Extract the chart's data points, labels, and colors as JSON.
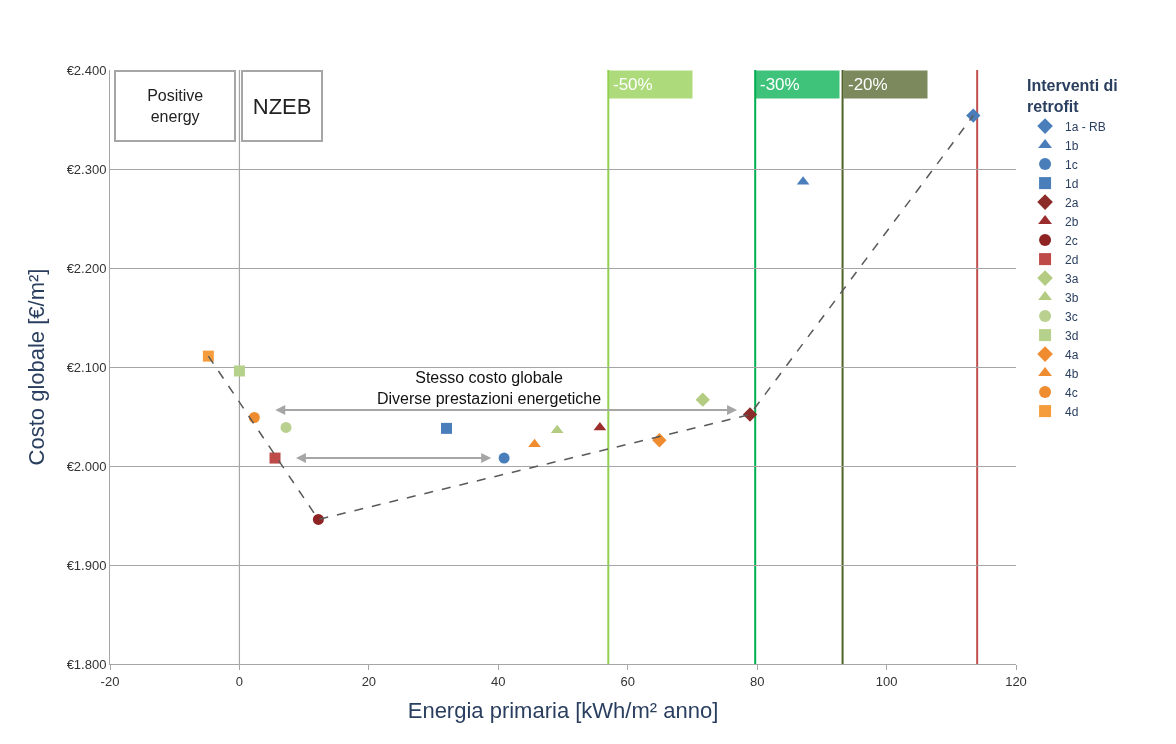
{
  "chart_data": {
    "type": "scatter",
    "xlabel": "Energia primaria [kWh/m² anno]",
    "ylabel": "Costo globale [€/m²]",
    "legend_title": "Interventi di retrofit",
    "legend": "right",
    "grid": "y",
    "xlim": [
      -20,
      120
    ],
    "xticks": [
      -20,
      0,
      20,
      40,
      60,
      80,
      100,
      120
    ],
    "ylim": [
      1800,
      2400
    ],
    "yticks": [
      {
        "value": 1800,
        "label": "€1.800"
      },
      {
        "value": 1900,
        "label": "€1.900"
      },
      {
        "value": 2000,
        "label": "€2.000"
      },
      {
        "value": 2100,
        "label": "€2.100"
      },
      {
        "value": 2200,
        "label": "€2.200"
      },
      {
        "value": 2300,
        "label": "€2.300"
      },
      {
        "value": 2400,
        "label": "€2.400"
      }
    ],
    "series": [
      {
        "name": "1a - RB",
        "color": "#4a7ebb",
        "marker": "diamond",
        "x": [
          113.4
        ],
        "values": [
          2354
        ]
      },
      {
        "name": "1b",
        "color": "#4a7ebb",
        "marker": "triangle",
        "x": [
          87.1
        ],
        "values": [
          2287
        ]
      },
      {
        "name": "1c",
        "color": "#4a7ebb",
        "marker": "circle",
        "x": [
          40.9
        ],
        "values": [
          2008
        ]
      },
      {
        "name": "1d",
        "color": "#4a7ebb",
        "marker": "square",
        "x": [
          32.0
        ],
        "values": [
          2038
        ]
      },
      {
        "name": "2a",
        "color": "#8b2c2a",
        "marker": "diamond",
        "x": [
          78.9
        ],
        "values": [
          2052
        ]
      },
      {
        "name": "2b",
        "color": "#9b2d2d",
        "marker": "triangle",
        "x": [
          55.7
        ],
        "values": [
          2039
        ]
      },
      {
        "name": "2c",
        "color": "#8e2323",
        "marker": "circle",
        "x": [
          12.2
        ],
        "values": [
          1946
        ]
      },
      {
        "name": "2d",
        "color": "#be4b48",
        "marker": "square",
        "x": [
          5.5
        ],
        "values": [
          2008
        ]
      },
      {
        "name": "3a",
        "color": "#b3cc82",
        "marker": "diamond",
        "x": [
          71.6
        ],
        "values": [
          2067
        ]
      },
      {
        "name": "3b",
        "color": "#b3cc82",
        "marker": "triangle",
        "x": [
          49.1
        ],
        "values": [
          2036
        ]
      },
      {
        "name": "3c",
        "color": "#b9d08f",
        "marker": "circle",
        "x": [
          7.2
        ],
        "values": [
          2039
        ]
      },
      {
        "name": "3d",
        "color": "#b6d18c",
        "marker": "square",
        "x": [
          0.0
        ],
        "values": [
          2096
        ]
      },
      {
        "name": "4a",
        "color": "#f08c30",
        "marker": "diamond",
        "x": [
          64.9
        ],
        "values": [
          2026
        ]
      },
      {
        "name": "4b",
        "color": "#f08c30",
        "marker": "triangle",
        "x": [
          45.6
        ],
        "values": [
          2022
        ]
      },
      {
        "name": "4c",
        "color": "#f08c30",
        "marker": "circle",
        "x": [
          2.3
        ],
        "values": [
          2049
        ]
      },
      {
        "name": "4d",
        "color": "#f59d3d",
        "marker": "square",
        "x": [
          -4.8
        ],
        "values": [
          2111
        ]
      },
      {
        "type": "line",
        "color": "#595959",
        "marker": "none",
        "line_style": "dashed",
        "x": [
          -4.8,
          12.2,
          78.9,
          113.4
        ],
        "values": [
          2111,
          1946,
          2052,
          2354
        ]
      }
    ],
    "ref_lines": [
      {
        "axis": "x",
        "value": 0,
        "color": "#a6a6a6"
      },
      {
        "axis": "x",
        "value": 57,
        "color": "#92d050"
      },
      {
        "axis": "x",
        "value": 79.7,
        "color": "#00b050"
      },
      {
        "axis": "x",
        "value": 93.2,
        "color": "#4f6228"
      },
      {
        "axis": "x",
        "value": 114,
        "color": "#c0504d"
      }
    ],
    "annotations": [
      "Positive\nenergy",
      "NZEB",
      "Stesso costo globale\nDiverse prestazioni energetiche",
      "-50%",
      "-30%",
      "-20%"
    ]
  }
}
